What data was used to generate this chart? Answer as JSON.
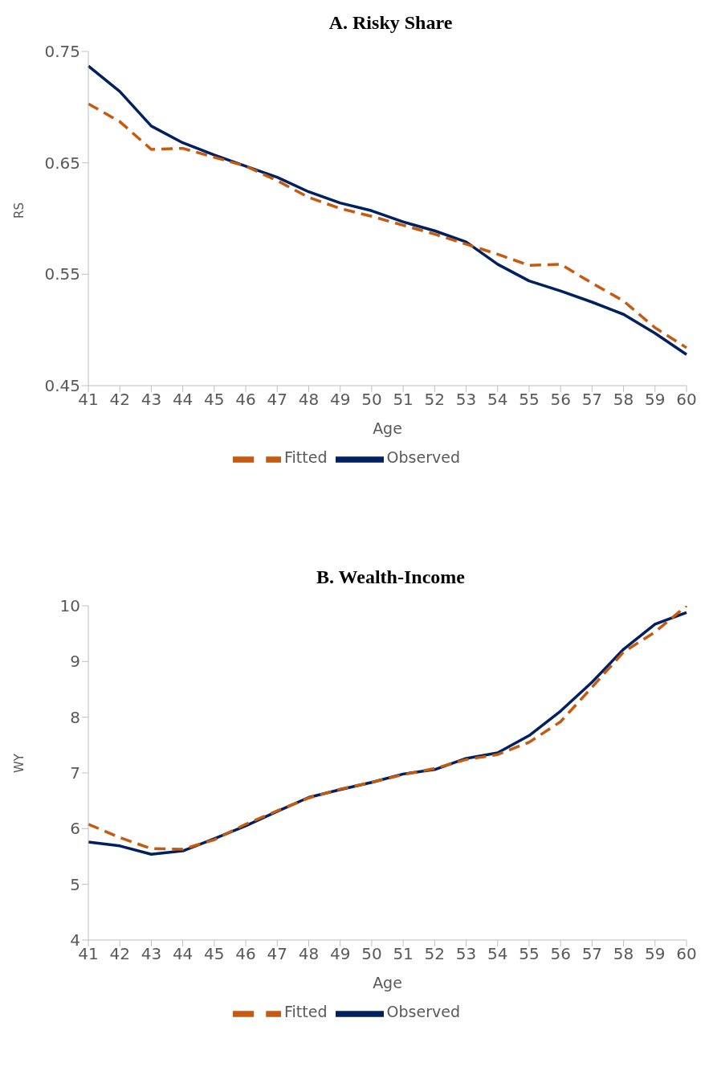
{
  "chart_data": [
    {
      "type": "line",
      "title": "A. Risky Share",
      "xlabel": "Age",
      "ylabel": "RS",
      "categories": [
        "41",
        "42",
        "43",
        "44",
        "45",
        "46",
        "47",
        "48",
        "49",
        "50",
        "51",
        "52",
        "53",
        "54",
        "55",
        "56",
        "57",
        "58",
        "59",
        "60"
      ],
      "series": [
        {
          "name": "Observed",
          "color": "#002060",
          "line_style": "solid",
          "values": [
            0.737,
            0.714,
            0.683,
            0.668,
            0.657,
            0.647,
            0.637,
            0.624,
            0.614,
            0.607,
            0.597,
            0.589,
            0.579,
            0.559,
            0.544,
            0.535,
            0.525,
            0.514,
            0.497,
            0.478
          ]
        },
        {
          "name": "Fitted",
          "color": "#c55a11",
          "line_style": "dashed",
          "values": [
            0.703,
            0.687,
            0.662,
            0.663,
            0.655,
            0.647,
            0.634,
            0.619,
            0.609,
            0.602,
            0.594,
            0.586,
            0.577,
            0.568,
            0.558,
            0.559,
            0.542,
            0.526,
            0.502,
            0.484
          ]
        }
      ],
      "ylim": [
        0.45,
        0.75
      ],
      "yticks": [
        0.45,
        0.55,
        0.65,
        0.75
      ],
      "legend": "bottom"
    },
    {
      "type": "line",
      "title": "B. Wealth-Income",
      "xlabel": "Age",
      "ylabel": "WY",
      "categories": [
        "41",
        "42",
        "43",
        "44",
        "45",
        "46",
        "47",
        "48",
        "49",
        "50",
        "51",
        "52",
        "53",
        "54",
        "55",
        "56",
        "57",
        "58",
        "59",
        "60"
      ],
      "series": [
        {
          "name": "Observed",
          "color": "#002060",
          "line_style": "solid",
          "values": [
            5.76,
            5.69,
            5.54,
            5.6,
            5.82,
            6.05,
            6.31,
            6.56,
            6.7,
            6.83,
            6.98,
            7.06,
            7.26,
            7.36,
            7.67,
            8.11,
            8.63,
            9.22,
            9.67,
            9.88
          ]
        },
        {
          "name": "Fitted",
          "color": "#c55a11",
          "line_style": "dashed",
          "values": [
            6.08,
            5.84,
            5.64,
            5.63,
            5.8,
            6.08,
            6.32,
            6.55,
            6.71,
            6.83,
            6.97,
            7.08,
            7.24,
            7.33,
            7.55,
            7.92,
            8.54,
            9.17,
            9.53,
            10.0
          ]
        }
      ],
      "ylim": [
        4,
        10
      ],
      "yticks": [
        4,
        5,
        6,
        7,
        8,
        9,
        10
      ],
      "legend": "bottom"
    }
  ]
}
